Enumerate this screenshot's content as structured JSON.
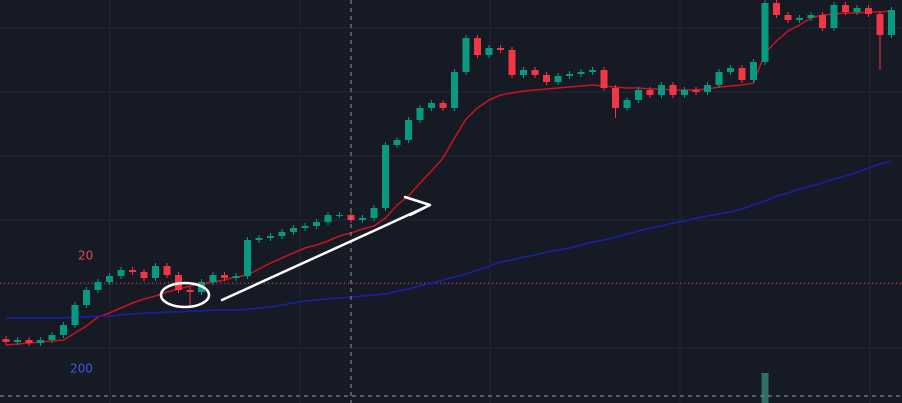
{
  "chart_data": {
    "type": "candlestick",
    "ylim": [
      0,
      403
    ],
    "up_color": "#089981",
    "down_color": "#f23645",
    "open": [
      64,
      61,
      63,
      60,
      63,
      68,
      78,
      98,
      113,
      121,
      127,
      133,
      131,
      125,
      137,
      128,
      113,
      111,
      121,
      128,
      125,
      127,
      163,
      165,
      167,
      171,
      175,
      177,
      181,
      188,
      188,
      183,
      185,
      195,
      258,
      263,
      283,
      295,
      300,
      295,
      331,
      365,
      348,
      355,
      353,
      328,
      333,
      328,
      321,
      327,
      329,
      331,
      333,
      315,
      295,
      303,
      313,
      308,
      318,
      308,
      313,
      311,
      318,
      331,
      335,
      323,
      341,
      400,
      388,
      383,
      385,
      388,
      375,
      398,
      391,
      395,
      389,
      368
    ],
    "high": [
      67,
      66,
      66,
      66,
      71,
      81,
      101,
      116,
      124,
      130,
      136,
      136,
      134,
      140,
      140,
      131,
      116,
      124,
      131,
      131,
      130,
      166,
      168,
      170,
      174,
      178,
      180,
      184,
      191,
      191,
      191,
      188,
      198,
      261,
      266,
      286,
      298,
      303,
      303,
      334,
      368,
      368,
      358,
      358,
      356,
      336,
      336,
      331,
      330,
      332,
      334,
      336,
      336,
      318,
      306,
      316,
      316,
      321,
      321,
      316,
      316,
      321,
      334,
      338,
      338,
      344,
      403,
      403,
      391,
      388,
      391,
      391,
      401,
      401,
      398,
      398,
      392,
      396
    ],
    "low": [
      58,
      58,
      57,
      57,
      60,
      65,
      75,
      95,
      110,
      118,
      124,
      128,
      122,
      122,
      125,
      110,
      95,
      108,
      118,
      122,
      122,
      124,
      160,
      162,
      164,
      168,
      172,
      174,
      178,
      185,
      180,
      180,
      182,
      192,
      255,
      260,
      280,
      292,
      292,
      292,
      328,
      345,
      345,
      350,
      325,
      325,
      325,
      318,
      318,
      324,
      326,
      328,
      312,
      285,
      292,
      300,
      305,
      305,
      305,
      305,
      308,
      308,
      315,
      328,
      320,
      320,
      338,
      385,
      380,
      380,
      382,
      372,
      372,
      388,
      388,
      386,
      333,
      365
    ],
    "close": [
      61,
      63,
      60,
      63,
      68,
      78,
      98,
      113,
      121,
      127,
      133,
      131,
      125,
      137,
      128,
      113,
      111,
      121,
      128,
      125,
      127,
      163,
      165,
      167,
      171,
      175,
      177,
      181,
      188,
      188,
      183,
      185,
      195,
      258,
      263,
      283,
      295,
      300,
      295,
      331,
      365,
      348,
      355,
      353,
      328,
      333,
      328,
      321,
      327,
      329,
      331,
      333,
      315,
      295,
      303,
      313,
      308,
      318,
      308,
      313,
      311,
      318,
      331,
      335,
      323,
      341,
      400,
      388,
      383,
      385,
      388,
      375,
      398,
      391,
      395,
      389,
      368,
      393
    ],
    "volume": [
      null,
      null,
      null,
      null,
      null,
      null,
      null,
      null,
      null,
      null,
      null,
      null,
      null,
      null,
      null,
      null,
      null,
      null,
      null,
      null,
      null,
      null,
      null,
      null,
      null,
      null,
      null,
      null,
      null,
      null,
      null,
      null,
      null,
      null,
      null,
      null,
      null,
      null,
      null,
      null,
      null,
      null,
      null,
      null,
      null,
      null,
      null,
      null,
      null,
      null,
      null,
      null,
      null,
      null,
      null,
      null,
      null,
      null,
      null,
      null,
      null,
      null,
      null,
      null,
      null,
      null,
      30,
      null,
      null,
      null,
      null,
      null,
      null,
      null,
      null,
      null,
      null,
      null
    ],
    "price_line": 120,
    "series": [
      {
        "name": "20",
        "color": "#c8141e",
        "values": [
          58,
          59,
          60,
          61,
          62,
          63,
          70,
          77,
          86,
          90,
          95,
          100,
          104,
          107,
          111,
          114,
          117,
          119,
          121,
          123,
          126,
          128,
          134,
          140,
          145,
          150,
          155,
          158,
          162,
          167,
          170,
          174,
          177,
          185,
          198,
          207,
          220,
          232,
          245,
          265,
          284,
          295,
          303,
          308,
          310,
          312,
          313,
          314,
          315,
          316,
          317,
          318,
          317,
          316,
          315,
          315,
          314,
          314,
          313,
          313,
          313,
          314,
          316,
          317,
          318,
          320,
          350,
          362,
          372,
          378,
          385,
          388,
          389,
          390,
          390,
          391,
          391,
          392
        ]
      },
      {
        "name": "200",
        "color": "#1a1fa8",
        "values": [
          85,
          85,
          85,
          85,
          85,
          85,
          86,
          86,
          87,
          87,
          88,
          89,
          90,
          90,
          91,
          91,
          92,
          92,
          93,
          93,
          93,
          94,
          95,
          96,
          98,
          100,
          102,
          103,
          104,
          105,
          106,
          107,
          108,
          109,
          112,
          114,
          117,
          120,
          123,
          126,
          129,
          133,
          137,
          141,
          143,
          146,
          148,
          151,
          153,
          155,
          158,
          161,
          163,
          166,
          169,
          172,
          175,
          177,
          180,
          182,
          185,
          187,
          189,
          191,
          194,
          198,
          202,
          207,
          210,
          214,
          217,
          220,
          224,
          227,
          231,
          235,
          239,
          242
        ]
      }
    ]
  }
}
